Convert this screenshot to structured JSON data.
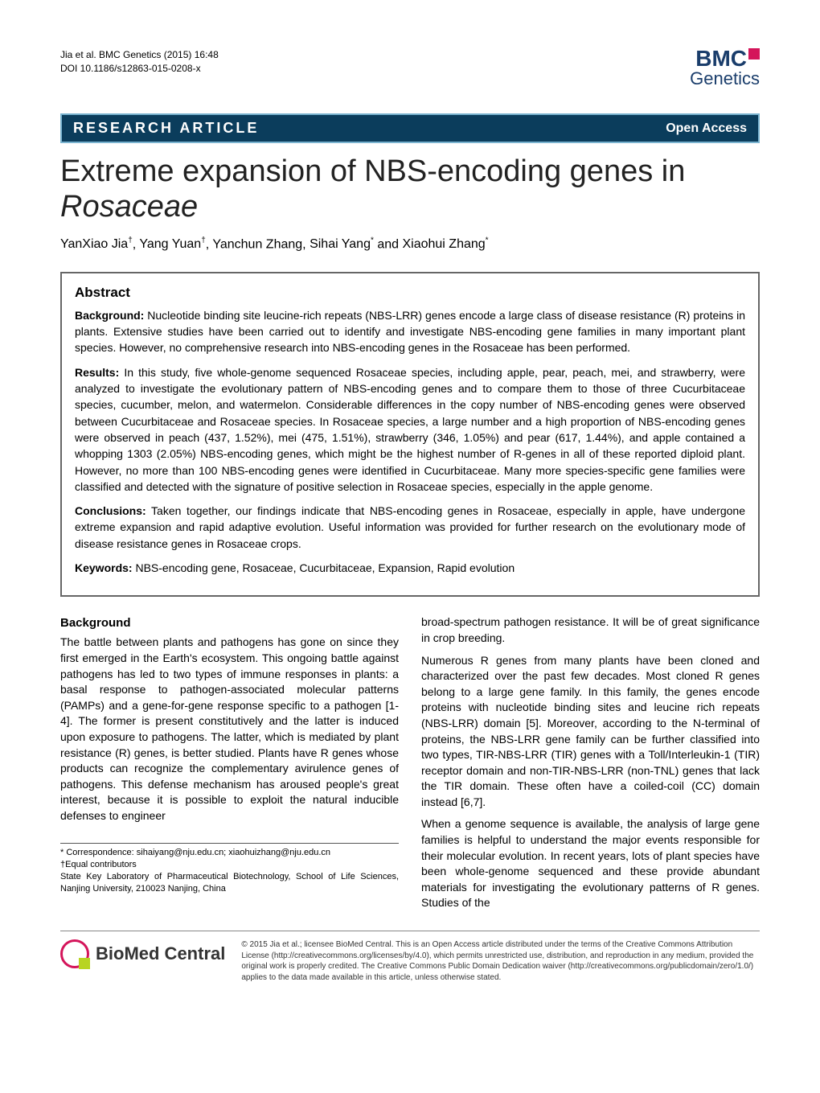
{
  "header": {
    "citation": "Jia et al. BMC Genetics  (2015) 16:48",
    "doi": "DOI 10.1186/s12863-015-0208-x",
    "logo_top": "BMC",
    "logo_bottom": "Genetics"
  },
  "bar": {
    "article_type": "RESEARCH ARTICLE",
    "open_access": "Open Access"
  },
  "title_plain": "Extreme expansion of NBS-encoding genes in ",
  "title_italic": "Rosaceae",
  "authors_html": "YanXiao Jia†, Yang Yuan†, Yanchun Zhang, Sihai Yang* and Xiaohui Zhang*",
  "authors": [
    {
      "name": "YanXiao Jia",
      "sup": "†"
    },
    {
      "name": "Yang Yuan",
      "sup": "†"
    },
    {
      "name": "Yanchun Zhang",
      "sup": ""
    },
    {
      "name": "Sihai Yang",
      "sup": "*"
    },
    {
      "name": "Xiaohui Zhang",
      "sup": "*"
    }
  ],
  "abstract": {
    "heading": "Abstract",
    "background_label": "Background:",
    "background_text": " Nucleotide binding site leucine-rich repeats (NBS-LRR) genes encode a large class of disease resistance (R) proteins in plants. Extensive studies have been carried out to identify and investigate NBS-encoding gene families in many important plant species. However, no comprehensive research into NBS-encoding genes in the Rosaceae has been performed.",
    "results_label": "Results:",
    "results_text": " In this study, five whole-genome sequenced Rosaceae species, including apple, pear, peach, mei, and strawberry, were analyzed to investigate the evolutionary pattern of NBS-encoding genes and to compare them to those of three Cucurbitaceae species, cucumber, melon, and watermelon. Considerable differences in the copy number of NBS-encoding genes were observed between Cucurbitaceae and Rosaceae species. In Rosaceae species, a large number and a high proportion of NBS-encoding genes were observed in peach (437, 1.52%), mei (475, 1.51%), strawberry (346, 1.05%) and pear (617, 1.44%), and apple contained a whopping 1303 (2.05%) NBS-encoding genes, which might be the highest number of R-genes in all of these reported diploid plant. However, no more than 100 NBS-encoding genes were identified in Cucurbitaceae. Many more species-specific gene families were classified and detected with the signature of positive selection in Rosaceae species, especially in the apple genome.",
    "conclusions_label": "Conclusions:",
    "conclusions_text": " Taken together, our findings indicate that NBS-encoding genes in Rosaceae, especially in apple, have undergone extreme expansion and rapid adaptive evolution. Useful information was provided for further research on the evolutionary mode of disease resistance genes in Rosaceae crops.",
    "keywords_label": "Keywords:",
    "keywords_text": " NBS-encoding gene, Rosaceae, Cucurbitaceae, Expansion, Rapid evolution"
  },
  "body": {
    "background_heading": "Background",
    "left_paras": [
      "The battle between plants and pathogens has gone on since they first emerged in the Earth's ecosystem. This ongoing battle against pathogens has led to two types of immune responses in plants: a basal response to pathogen-associated molecular patterns (PAMPs) and a gene-for-gene response specific to a pathogen [1-4]. The former is present constitutively and the latter is induced upon exposure to pathogens. The latter, which is mediated by plant resistance (R) genes, is better studied. Plants have R genes whose products can recognize the complementary avirulence genes of pathogens. This defense mechanism has aroused people's great interest, because it is possible to exploit the natural inducible defenses to engineer"
    ],
    "right_paras": [
      "broad-spectrum pathogen resistance. It will be of great significance in crop breeding.",
      "Numerous R genes from many plants have been cloned and characterized over the past few decades. Most cloned R genes belong to a large gene family. In this family, the genes encode proteins with nucleotide binding sites and leucine rich repeats (NBS-LRR) domain [5]. Moreover, according to the N-terminal of proteins, the NBS-LRR gene family can be further classified into two types, TIR-NBS-LRR (TIR) genes with a Toll/Interleukin-1 (TIR) receptor domain and non-TIR-NBS-LRR (non-TNL) genes that lack the TIR domain. These often have a coiled-coil (CC) domain instead [6,7].",
      "When a genome sequence is available, the analysis of large gene families is helpful to understand the major events responsible for their molecular evolution. In recent years, lots of plant species have been whole-genome sequenced and these provide abundant materials for investigating the evolutionary patterns of R genes. Studies of the"
    ]
  },
  "correspondence": {
    "line1": "* Correspondence: sihaiyang@nju.edu.cn; xiaohuizhang@nju.edu.cn",
    "line2": "†Equal contributors",
    "line3": "State Key Laboratory of Pharmaceutical Biotechnology, School of Life Sciences, Nanjing University, 210023 Nanjing, China"
  },
  "footer": {
    "bmc_text": "BioMed Central",
    "license": "© 2015 Jia et al.; licensee BioMed Central. This is an Open Access article distributed under the terms of the Creative Commons Attribution License (http://creativecommons.org/licenses/by/4.0), which permits unrestricted use, distribution, and reproduction in any medium, provided the original work is properly credited. The Creative Commons Public Domain Dedication waiver (http://creativecommons.org/publicdomain/zero/1.0/) applies to the data made available in this article, unless otherwise stated."
  },
  "colors": {
    "bar_bg": "#0b3d5c",
    "bar_border": "#7ab4d0",
    "logo_blue": "#1a3d6b",
    "logo_pink": "#d4145a",
    "logo_green": "#b8d422"
  }
}
